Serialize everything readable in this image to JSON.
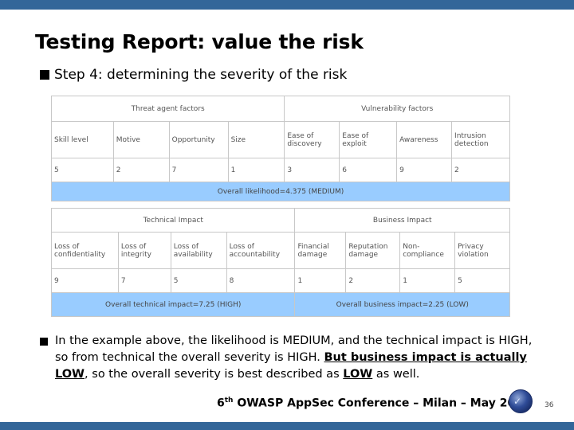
{
  "slide": {
    "title": "Testing Report: value the risk",
    "step": "Step 4: determining the severity of the risk",
    "page_number": "36"
  },
  "likelihood_table": {
    "groups": [
      "Threat agent factors",
      "Vulnerability factors"
    ],
    "columns": [
      "Skill level",
      "Motive",
      "Opportunity",
      "Size",
      "Ease of discovery",
      "Ease of exploit",
      "Awareness",
      "Intrusion detection"
    ],
    "values": [
      "5",
      "2",
      "7",
      "1",
      "3",
      "6",
      "9",
      "2"
    ],
    "summary": "Overall likelihood=4.375 (MEDIUM)"
  },
  "impact_table": {
    "groups": [
      "Technical Impact",
      "Business Impact"
    ],
    "columns": [
      "Loss of confidentiality",
      "Loss of integrity",
      "Loss of availability",
      "Loss of accountability",
      "Financial damage",
      "Reputation damage",
      "Non-compliance",
      "Privacy violation"
    ],
    "values": [
      "9",
      "7",
      "5",
      "8",
      "1",
      "2",
      "1",
      "5"
    ],
    "summary_technical": "Overall technical impact=7.25 (HIGH)",
    "summary_business": "Overall business impact=2.25 (LOW)"
  },
  "bullet": {
    "part1": "In the example above, the likelihood is MEDIUM, and the technical impact is HIGH, so from technical the overall severity is HIGH. ",
    "part2": "But business impact is actually LOW",
    "part3": ", so the overall severity is best described as ",
    "part4": "LOW",
    "part5": " as well."
  },
  "footer": {
    "ordinal": "6",
    "ordinal_suffix": "th",
    "text": " OWASP AppSec Conference – Milan – May 2007"
  },
  "logo": {
    "icon": "owasp-globe-logo",
    "mark": "✓"
  },
  "colors": {
    "bar": "#336699",
    "summary_fill": "#99ccff"
  }
}
